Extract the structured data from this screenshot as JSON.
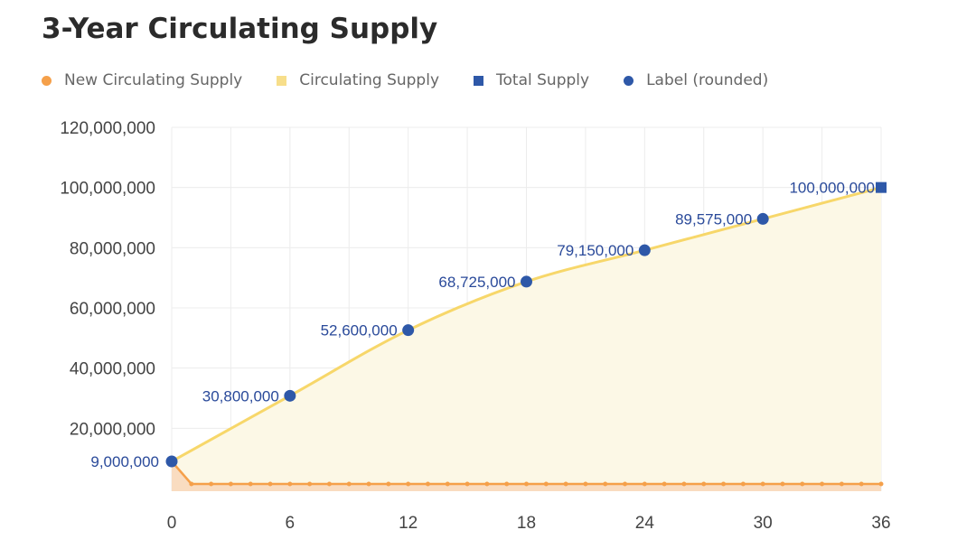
{
  "chart_data": {
    "type": "line",
    "title": "3-Year Circulating Supply",
    "xlabel": "",
    "ylabel": "",
    "xlim": [
      0,
      36
    ],
    "ylim": [
      0,
      120000000
    ],
    "x_ticks": [
      "0",
      "6",
      "12",
      "18",
      "24",
      "30",
      "36"
    ],
    "y_ticks": [
      "20,000,000",
      "40,000,000",
      "60,000,000",
      "80,000,000",
      "100,000,000",
      "120,000,000"
    ],
    "grid": true,
    "legend_position": "top",
    "legend": [
      {
        "name": "New Circulating Supply",
        "color": "#f5a04a",
        "marker": "circle"
      },
      {
        "name": "Circulating Supply",
        "color": "#f7de8a",
        "marker": "square"
      },
      {
        "name": "Total Supply",
        "color": "#2e58a8",
        "marker": "square"
      },
      {
        "name": "Label (rounded)",
        "color": "#2e58a8",
        "marker": "circle"
      }
    ],
    "series": [
      {
        "name": "Circulating Supply",
        "type": "area",
        "color": "#f7d76a",
        "x": [
          0,
          6,
          12,
          18,
          24,
          30,
          36
        ],
        "values": [
          9000000,
          30800000,
          52600000,
          68725000,
          79150000,
          89575000,
          100000000
        ]
      },
      {
        "name": "New Circulating Supply",
        "type": "area",
        "color": "#f5a04a",
        "x": [
          0,
          1,
          2,
          3,
          4,
          5,
          6,
          7,
          8,
          9,
          10,
          11,
          12,
          13,
          14,
          15,
          16,
          17,
          18,
          19,
          20,
          21,
          22,
          23,
          24,
          25,
          26,
          27,
          28,
          29,
          30,
          31,
          32,
          33,
          34,
          35,
          36
        ],
        "values": [
          9000000,
          1500000,
          1500000,
          1500000,
          1500000,
          1500000,
          1500000,
          1500000,
          1500000,
          1500000,
          1500000,
          1500000,
          1500000,
          1500000,
          1500000,
          1500000,
          1500000,
          1500000,
          1500000,
          1500000,
          1500000,
          1500000,
          1500000,
          1500000,
          1500000,
          1500000,
          1500000,
          1500000,
          1500000,
          1500000,
          1500000,
          1500000,
          1500000,
          1500000,
          1500000,
          1500000,
          1500000
        ]
      },
      {
        "name": "Total Supply",
        "type": "point",
        "color": "#2e58a8",
        "x": [
          36
        ],
        "values": [
          100000000
        ]
      },
      {
        "name": "Label (rounded)",
        "type": "point",
        "color": "#2e58a8",
        "x": [
          0,
          6,
          12,
          18,
          24,
          30
        ],
        "values": [
          9000000,
          30800000,
          52600000,
          68725000,
          79150000,
          89575000
        ],
        "labels": [
          "9,000,000",
          "30,800,000",
          "52,600,000",
          "68,725,000",
          "79,150,000",
          "89,575,000"
        ]
      }
    ],
    "total_label": "100,000,000"
  }
}
